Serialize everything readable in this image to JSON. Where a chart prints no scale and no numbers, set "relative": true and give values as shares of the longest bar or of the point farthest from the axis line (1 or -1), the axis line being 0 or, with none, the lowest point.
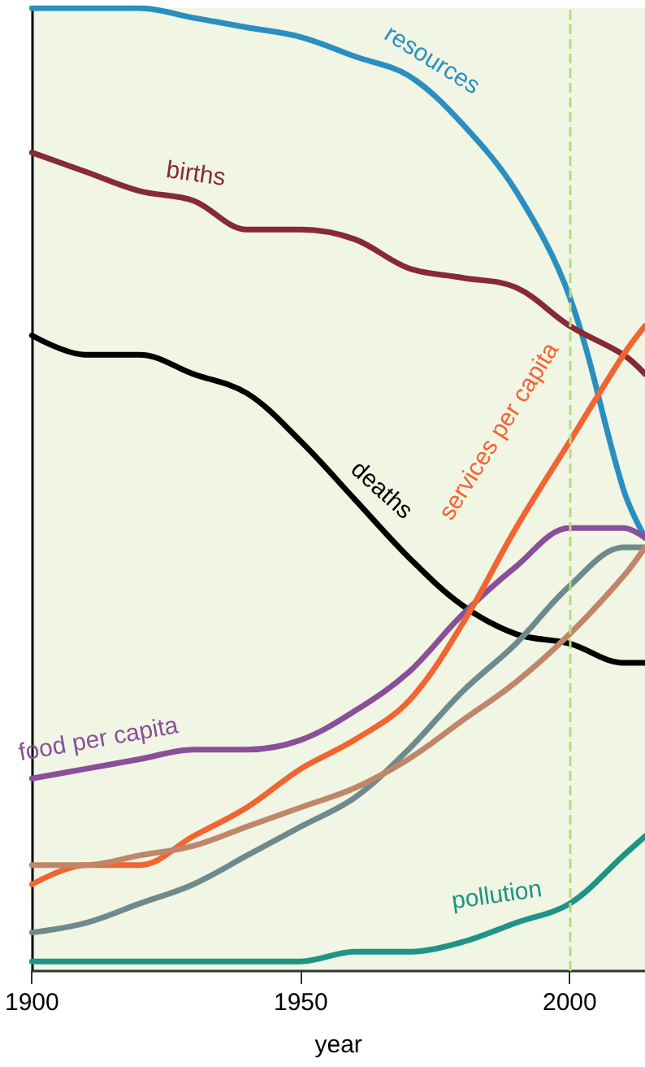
{
  "chart_data": {
    "type": "line",
    "relative": true,
    "xlabel": "year",
    "x": [
      1900,
      1910,
      1920,
      1930,
      1940,
      1950,
      1960,
      1970,
      1980,
      1990,
      2000,
      2010,
      2014
    ],
    "xlim": [
      1900,
      2014
    ],
    "xticks": [
      1900,
      1950,
      2000
    ],
    "grid": false,
    "legend": false,
    "marker": "none",
    "line_style": "solid",
    "ref_lines": [
      {
        "axis": "x",
        "value": 2000,
        "color": "#b7dc7e",
        "line_style": "dashed"
      }
    ],
    "series": [
      {
        "name": "resources",
        "color": "#2a8fc0",
        "values": [
          1.0,
          1.0,
          1.0,
          0.99,
          0.98,
          0.97,
          0.95,
          0.93,
          0.88,
          0.81,
          0.7,
          0.5,
          0.45
        ]
      },
      {
        "name": "births",
        "color": "#862a35",
        "values": [
          0.85,
          0.83,
          0.81,
          0.8,
          0.77,
          0.77,
          0.76,
          0.73,
          0.72,
          0.71,
          0.67,
          0.64,
          0.62
        ]
      },
      {
        "name": "deaths",
        "color": "#000000",
        "values": [
          0.66,
          0.64,
          0.64,
          0.62,
          0.6,
          0.55,
          0.49,
          0.43,
          0.38,
          0.35,
          0.34,
          0.32,
          0.32
        ]
      },
      {
        "name": "food per capita",
        "color": "#8b4f9a",
        "values": [
          0.2,
          0.21,
          0.22,
          0.23,
          0.23,
          0.24,
          0.27,
          0.31,
          0.37,
          0.42,
          0.46,
          0.46,
          0.45
        ]
      },
      {
        "name": "services per capita",
        "color": "#f26430",
        "values": [
          0.09,
          0.11,
          0.11,
          0.14,
          0.17,
          0.21,
          0.24,
          0.28,
          0.36,
          0.46,
          0.55,
          0.64,
          0.67
        ]
      },
      {
        "color": "#6f8a8c",
        "values": [
          0.04,
          0.05,
          0.07,
          0.09,
          0.12,
          0.15,
          0.18,
          0.23,
          0.29,
          0.34,
          0.4,
          0.44,
          0.44
        ]
      },
      {
        "color": "#c0866a",
        "values": [
          0.11,
          0.11,
          0.12,
          0.13,
          0.15,
          0.17,
          0.19,
          0.22,
          0.26,
          0.3,
          0.35,
          0.41,
          0.44
        ]
      },
      {
        "name": "pollution",
        "color": "#1f9486",
        "values": [
          0.01,
          0.01,
          0.01,
          0.01,
          0.01,
          0.01,
          0.02,
          0.02,
          0.03,
          0.05,
          0.07,
          0.12,
          0.14
        ]
      }
    ]
  }
}
